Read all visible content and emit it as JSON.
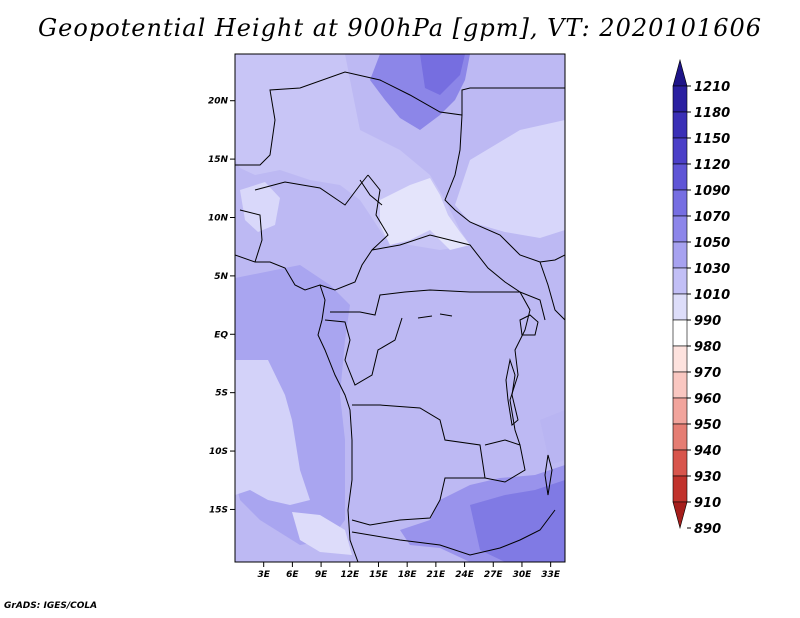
{
  "title": "Geopotential Height at 900hPa [gpm], VT: 2020101606",
  "credit": "GrADS: IGES/COLA",
  "chart_data": {
    "type": "heatmap",
    "title": "Geopotential Height at 900hPa [gpm], VT: 2020101606",
    "variable_units": "gpm",
    "lon_range": [
      0,
      34.5
    ],
    "lat_range": [
      -19.5,
      24
    ],
    "x_ticks": [
      "3E",
      "6E",
      "9E",
      "12E",
      "15E",
      "18E",
      "21E",
      "24E",
      "27E",
      "30E",
      "33E"
    ],
    "x_tick_values": [
      3,
      6,
      9,
      12,
      15,
      18,
      21,
      24,
      27,
      30,
      33
    ],
    "y_ticks": [
      "20N",
      "15N",
      "10N",
      "5N",
      "EQ",
      "5S",
      "10S",
      "15S"
    ],
    "y_tick_values": [
      20,
      15,
      10,
      5,
      0,
      -5,
      -10,
      -15
    ],
    "colorbar": {
      "levels": [
        "1210",
        "1180",
        "1150",
        "1120",
        "1090",
        "1070",
        "1050",
        "1030",
        "1010",
        "990",
        "980",
        "970",
        "960",
        "950",
        "940",
        "930",
        "910",
        "890"
      ],
      "colors": [
        "#1e1488",
        "#2a1fa0",
        "#3a2fb6",
        "#4b3fc8",
        "#5f55d6",
        "#766ee2",
        "#8d86ea",
        "#a7a2f0",
        "#c2bff6",
        "#ddddf9",
        "#ffffff",
        "#fde2de",
        "#f9c7c1",
        "#f1a49c",
        "#e57d73",
        "#d8554c",
        "#c1322c",
        "#a51e1c"
      ]
    }
  }
}
